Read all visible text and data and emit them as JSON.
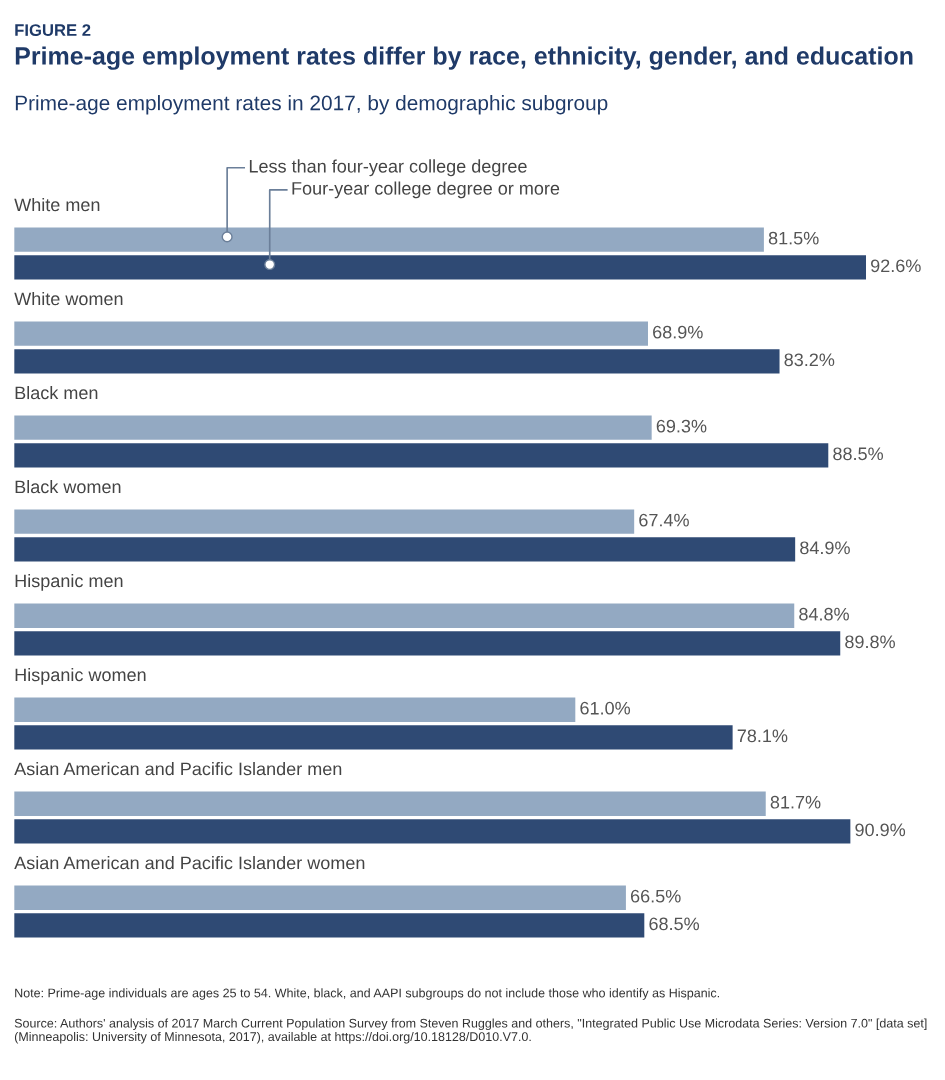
{
  "chart_data": {
    "type": "bar",
    "orientation": "horizontal",
    "title": "Prime-age employment rates differ by race, ethnicity, gender, and education",
    "subtitle": "Prime-age employment rates in 2017, by demographic subgroup",
    "categories": [
      "White men",
      "White women",
      "Black men",
      "Black women",
      "Hispanic men",
      "Hispanic women",
      "Asian American and Pacific Islander men",
      "Asian American and Pacific Islander women"
    ],
    "series": [
      {
        "name": "Less than four-year college degree",
        "color": "#93a9c2",
        "values": [
          81.5,
          68.9,
          69.3,
          67.4,
          84.8,
          61.0,
          81.7,
          66.5
        ],
        "value_labels": [
          "81.5%",
          "68.9%",
          "69.3%",
          "67.4%",
          "84.8%",
          "61.0%",
          "81.7%",
          "66.5%"
        ]
      },
      {
        "name": "Four-year college degree or more",
        "color": "#2f4a74",
        "values": [
          92.6,
          83.2,
          88.5,
          84.9,
          89.8,
          78.1,
          90.9,
          68.5
        ],
        "value_labels": [
          "92.6%",
          "83.2%",
          "88.5%",
          "84.9%",
          "89.8%",
          "78.1%",
          "90.9%",
          "68.5%"
        ]
      }
    ],
    "annotations": [
      "FIGURE 2",
      "Note: Prime-age individuals are ages 25 to 54. White, black, and AAPI subgroups do not include those who identify as Hispanic.",
      "Source: Authors' analysis of 2017 March Current Population Survey from Steven Ruggles and others, \"Integrated Public Use Microdata Series: Version 7.0\" [data set] (Minneapolis: University of Minnesota, 2017), available at https://doi.org/10.18128/D010.V7.0."
    ]
  }
}
